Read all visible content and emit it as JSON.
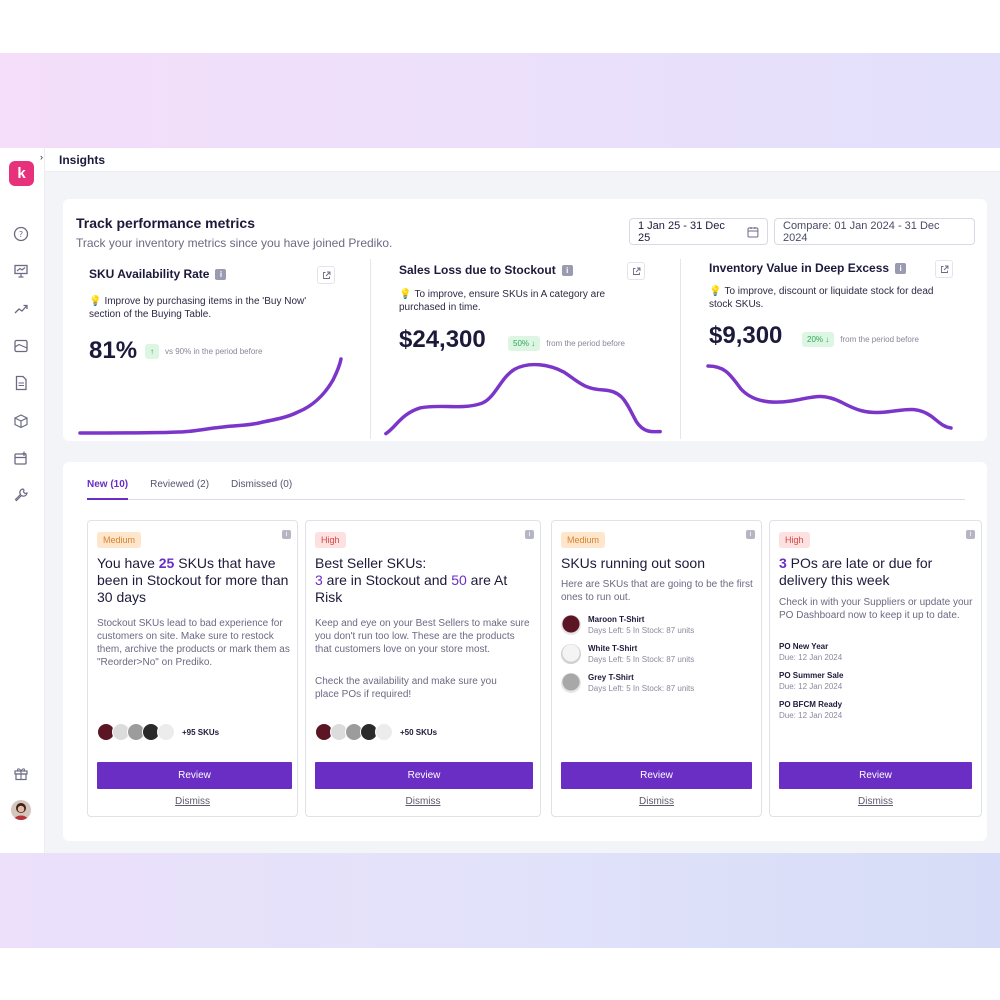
{
  "page": {
    "title": "Insights"
  },
  "sidebar": {
    "logo_letter": "k",
    "icons": [
      "help-icon",
      "presentation-icon",
      "trend-icon",
      "image-icon",
      "document-icon",
      "box-icon",
      "add-box-icon",
      "wrench-icon",
      "gift-icon"
    ]
  },
  "metrics_panel": {
    "title": "Track performance metrics",
    "subtitle": "Track your inventory metrics since you have joined Prediko.",
    "date_range": "1 Jan 25 - 31 Dec 25",
    "compare_range": "Compare: 01 Jan 2024 - 31 Dec 2024",
    "cards": [
      {
        "title": "SKU Availability Rate",
        "tip": "Improve by purchasing items in the 'Buy Now' section of the Buying Table.",
        "value": "81%",
        "change_badge": "↑",
        "change_text": "vs 90% in the period before"
      },
      {
        "title": "Sales Loss due to Stockout",
        "tip": "To improve, ensure SKUs in A category are purchased in time.",
        "value": "$24,300",
        "change_badge": "50% ↓",
        "change_text": "from the period before"
      },
      {
        "title": "Inventory Value in Deep Excess",
        "tip": "To improve, discount or liquidate stock for dead stock SKUs.",
        "value": "$9,300",
        "change_badge": "20% ↓",
        "change_text": "from the period before"
      }
    ],
    "accent_color": "#7b35c9"
  },
  "insights": {
    "tabs": [
      "New (10)",
      "Reviewed (2)",
      "Dismissed (0)"
    ],
    "cards": [
      {
        "priority": "Medium",
        "title_pre": "You have ",
        "title_hl": "25",
        "title_post": " SKUs that have been in Stockout for more than 30 days",
        "body": "Stockout SKUs lead to bad experience for customers on site. Make sure to restock them, archive the products or mark them as \"Reorder>No\" on Prediko.",
        "more": "+95 SKUs",
        "review": "Review",
        "dismiss": "Dismiss"
      },
      {
        "priority": "High",
        "title_line1": "Best Seller SKUs:",
        "title_hl1": "3",
        "title_mid": " are in Stockout and ",
        "title_hl2": "50",
        "title_end": " are At Risk",
        "body1": "Keep and eye on your Best Sellers to make sure you don't run too low. These are the products that customers love on your store most.",
        "body2": "Check the availability and make sure you place POs if required!",
        "more": "+50 SKUs",
        "review": "Review",
        "dismiss": "Dismiss"
      },
      {
        "priority": "Medium",
        "title": "SKUs running out soon",
        "body": "Here are SKUs that are going to be the first ones to run out.",
        "skus": [
          {
            "name": "Maroon T-Shirt",
            "meta": "Days Left: 5 In Stock: 87 units"
          },
          {
            "name": "White T-Shirt",
            "meta": "Days Left: 5 In Stock: 87 units"
          },
          {
            "name": "Grey T-Shirt",
            "meta": "Days Left: 5 In Stock: 87 units"
          }
        ],
        "review": "Review",
        "dismiss": "Dismiss"
      },
      {
        "priority": "High",
        "title_hl": "3",
        "title_post": " POs are late or due for delivery this week",
        "body": "Check in with your Suppliers or update your PO Dashboard now to keep it up to date.",
        "pos": [
          {
            "name": "PO New Year",
            "due": "Due: 12 Jan 2024"
          },
          {
            "name": "PO Summer Sale",
            "due": "Due: 12 Jan 2024"
          },
          {
            "name": "PO BFCM Ready",
            "due": "Due: 12 Jan 2024"
          }
        ],
        "review": "Review",
        "dismiss": "Dismiss"
      }
    ],
    "accent_color": "#6a2ec5"
  }
}
